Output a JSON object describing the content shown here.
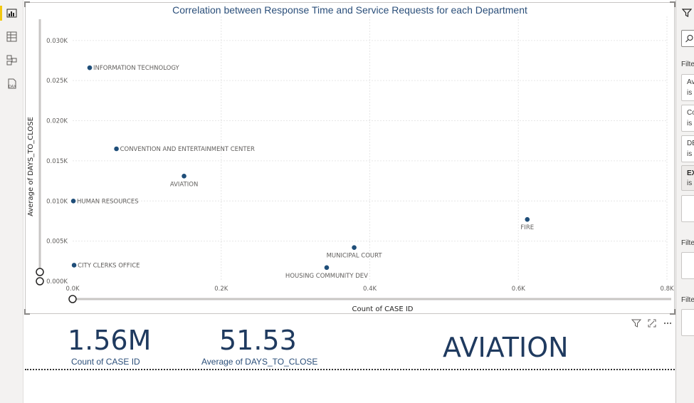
{
  "rail": {
    "items": [
      {
        "name": "report-view-icon",
        "active": true
      },
      {
        "name": "data-view-icon",
        "active": false
      },
      {
        "name": "model-view-icon",
        "active": false
      },
      {
        "name": "dax-query-view-icon",
        "active": false
      }
    ]
  },
  "chart_data": {
    "type": "scatter",
    "title": "Correlation between Response Time and Service Requests for each Department",
    "xlabel": "Count of CASE ID",
    "ylabel": "Average of DAYS_TO_CLOSE",
    "xlim": [
      0,
      800
    ],
    "ylim": [
      0,
      0.033
    ],
    "x_ticks": [
      "0.0K",
      "0.2K",
      "0.4K",
      "0.6K",
      "0.8K"
    ],
    "x_tick_values": [
      0,
      200,
      400,
      600,
      800
    ],
    "y_ticks": [
      "0.000K",
      "0.005K",
      "0.010K",
      "0.015K",
      "0.020K",
      "0.025K",
      "0.030K"
    ],
    "y_tick_values": [
      0,
      0.005,
      0.01,
      0.015,
      0.02,
      0.025,
      0.03
    ],
    "grid": true,
    "marker_color": "#1f4e79",
    "points": [
      {
        "label": "INFORMATION TECHNOLOGY",
        "x": 23,
        "y": 0.0266,
        "label_pos": "right"
      },
      {
        "label": "CONVENTION AND ENTERTAINMENT CENTER",
        "x": 59,
        "y": 0.0165,
        "label_pos": "right"
      },
      {
        "label": "AVIATION",
        "x": 150,
        "y": 0.0131,
        "label_pos": "below"
      },
      {
        "label": "HUMAN RESOURCES",
        "x": 1,
        "y": 0.01,
        "label_pos": "right"
      },
      {
        "label": "FIRE",
        "x": 612,
        "y": 0.0077,
        "label_pos": "below"
      },
      {
        "label": "MUNICIPAL COURT",
        "x": 379,
        "y": 0.0042,
        "label_pos": "below"
      },
      {
        "label": "CITY CLERKS OFFICE",
        "x": 2,
        "y": 0.002,
        "label_pos": "right"
      },
      {
        "label": "HOUSING COMMUNITY DEV",
        "x": 342,
        "y": 0.0017,
        "label_pos": "below"
      }
    ]
  },
  "cards": [
    {
      "value": "1.56M",
      "label": "Count of CASE ID"
    },
    {
      "value": "51.53",
      "label": "Average of DAYS_TO_CLOSE"
    },
    {
      "value": "AVIATION",
      "label": ""
    }
  ],
  "visual_tools": [
    "filter-icon",
    "focus-mode-icon",
    "more-options-icon"
  ],
  "filter_pane": {
    "search_placeholder": "",
    "section_label": "Filte",
    "cards": [
      {
        "line1": "Av",
        "line2": "is ("
      },
      {
        "line1": "Co",
        "line2": "is ("
      },
      {
        "line1": "DE",
        "line2": "is ("
      },
      {
        "line1": "EX",
        "line2": "is n"
      }
    ],
    "page_section_label": "Filte",
    "all_pages_section_label": "Filte"
  }
}
